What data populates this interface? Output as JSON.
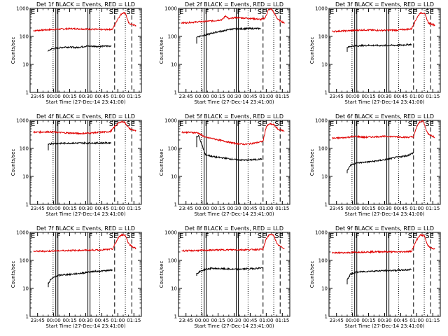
{
  "chart_data": {
    "type": "line",
    "xlabel": "Start Time (27-Dec-14 23:41:00)",
    "ylabel": "Counts/sec",
    "x_tick_labels": [
      "23:45",
      "00:00",
      "00:15",
      "00:30",
      "00:45",
      "01:00",
      "01:15"
    ],
    "y_tick_labels": [
      "1",
      "10",
      "100",
      "1000"
    ],
    "y_log": true,
    "ylim": [
      1,
      1000
    ],
    "xlim_minutes_after_start": [
      -3,
      101
    ],
    "x_ticks_minutes_after_start": [
      4,
      19,
      34,
      49,
      64,
      79,
      94
    ],
    "series_colors": {
      "events": "#000000",
      "lld": "#e00000"
    },
    "markers_minutes_after_start": {
      "dotted": [
        18.5,
        62,
        86
      ],
      "solid": [
        21,
        23,
        51,
        53
      ],
      "dashed": [
        76,
        92
      ]
    },
    "letter_labels": {
      "E": "E",
      "F": "F",
      "SE": "SE"
    },
    "panels": [
      {
        "title": "Det 1f  BLACK = Events, RED = LLD",
        "events_start": 32,
        "events": [
          [
            14,
            30
          ],
          [
            17,
            36
          ],
          [
            22,
            38
          ],
          [
            30,
            42
          ],
          [
            40,
            40
          ],
          [
            50,
            45
          ],
          [
            60,
            44
          ],
          [
            70,
            45
          ],
          [
            73,
            46
          ]
        ],
        "lld": [
          [
            0,
            160
          ],
          [
            10,
            170
          ],
          [
            22,
            180
          ],
          [
            35,
            190
          ],
          [
            45,
            185
          ],
          [
            55,
            180
          ],
          [
            65,
            175
          ],
          [
            74,
            180
          ],
          [
            79,
            430
          ],
          [
            83,
            680
          ],
          [
            86,
            700
          ],
          [
            89,
            300
          ],
          [
            93,
            260
          ],
          [
            96,
            240
          ]
        ]
      },
      {
        "title": "Det 2f  BLACK = Events, RED = LLD",
        "events_start": 55,
        "events": [
          [
            14,
            95
          ],
          [
            18,
            105
          ],
          [
            22,
            110
          ],
          [
            28,
            130
          ],
          [
            35,
            150
          ],
          [
            40,
            160
          ],
          [
            45,
            180
          ],
          [
            60,
            190
          ],
          [
            74,
            192
          ]
        ],
        "lld": [
          [
            0,
            300
          ],
          [
            10,
            320
          ],
          [
            20,
            340
          ],
          [
            30,
            360
          ],
          [
            38,
            400
          ],
          [
            41,
            550
          ],
          [
            44,
            420
          ],
          [
            50,
            470
          ],
          [
            60,
            450
          ],
          [
            70,
            420
          ],
          [
            74,
            400
          ],
          [
            78,
            460
          ],
          [
            81,
            900
          ],
          [
            84,
            950
          ],
          [
            90,
            400
          ],
          [
            96,
            300
          ]
        ]
      },
      {
        "title": "Det 3f  BLACK = Events, RED = LLD",
        "events_start": 28,
        "events": [
          [
            14,
            40
          ],
          [
            17,
            44
          ],
          [
            22,
            46
          ],
          [
            35,
            48
          ],
          [
            45,
            47
          ],
          [
            55,
            48
          ],
          [
            65,
            49
          ],
          [
            74,
            52
          ]
        ],
        "lld": [
          [
            0,
            150
          ],
          [
            15,
            160
          ],
          [
            30,
            170
          ],
          [
            45,
            165
          ],
          [
            60,
            168
          ],
          [
            74,
            185
          ],
          [
            79,
            450
          ],
          [
            82,
            680
          ],
          [
            86,
            690
          ],
          [
            90,
            300
          ],
          [
            96,
            250
          ]
        ]
      },
      {
        "title": "Det 4f  BLACK = Events, RED = LLD",
        "events_start": 85,
        "events": [
          [
            14,
            135
          ],
          [
            17,
            150
          ],
          [
            25,
            152
          ],
          [
            40,
            155
          ],
          [
            55,
            155
          ],
          [
            70,
            158
          ],
          [
            73,
            158
          ]
        ],
        "lld": [
          [
            0,
            380
          ],
          [
            15,
            390
          ],
          [
            30,
            360
          ],
          [
            45,
            340
          ],
          [
            60,
            370
          ],
          [
            72,
            400
          ],
          [
            78,
            720
          ],
          [
            82,
            900
          ],
          [
            85,
            880
          ],
          [
            90,
            500
          ],
          [
            96,
            420
          ]
        ]
      },
      {
        "title": "Det 5f  BLACK = Events, RED = LLD",
        "events_start": 110,
        "events": [
          [
            14,
            260
          ],
          [
            16,
            280
          ],
          [
            19,
            130
          ],
          [
            22,
            60
          ],
          [
            30,
            50
          ],
          [
            40,
            45
          ],
          [
            50,
            40
          ],
          [
            60,
            38
          ],
          [
            70,
            40
          ],
          [
            75,
            42
          ]
        ],
        "lld": [
          [
            0,
            380
          ],
          [
            10,
            370
          ],
          [
            15,
            360
          ],
          [
            22,
            250
          ],
          [
            30,
            220
          ],
          [
            40,
            180
          ],
          [
            50,
            150
          ],
          [
            60,
            140
          ],
          [
            70,
            160
          ],
          [
            76,
            180
          ],
          [
            79,
            600
          ],
          [
            82,
            750
          ],
          [
            86,
            700
          ],
          [
            90,
            480
          ],
          [
            96,
            420
          ]
        ]
      },
      {
        "title": "Det 6f  BLACK = Events, RED = LLD",
        "events_start": 13,
        "events": [
          [
            14,
            16
          ],
          [
            17,
            25
          ],
          [
            22,
            30
          ],
          [
            30,
            32
          ],
          [
            40,
            35
          ],
          [
            50,
            40
          ],
          [
            60,
            48
          ],
          [
            70,
            55
          ],
          [
            76,
            70
          ]
        ],
        "lld": [
          [
            0,
            230
          ],
          [
            10,
            240
          ],
          [
            22,
            270
          ],
          [
            30,
            250
          ],
          [
            40,
            260
          ],
          [
            50,
            270
          ],
          [
            60,
            260
          ],
          [
            70,
            250
          ],
          [
            76,
            260
          ],
          [
            79,
            600
          ],
          [
            82,
            900
          ],
          [
            85,
            950
          ],
          [
            89,
            350
          ],
          [
            93,
            280
          ],
          [
            96,
            250
          ]
        ]
      },
      {
        "title": "Det 7f  BLACK = Events, RED = LLD",
        "events_start": 11,
        "events": [
          [
            14,
            15
          ],
          [
            16,
            20
          ],
          [
            20,
            26
          ],
          [
            25,
            30
          ],
          [
            35,
            32
          ],
          [
            45,
            35
          ],
          [
            55,
            40
          ],
          [
            65,
            42
          ],
          [
            74,
            45
          ]
        ],
        "lld": [
          [
            0,
            210
          ],
          [
            15,
            215
          ],
          [
            30,
            225
          ],
          [
            45,
            230
          ],
          [
            60,
            235
          ],
          [
            74,
            250
          ],
          [
            79,
            600
          ],
          [
            82,
            820
          ],
          [
            86,
            800
          ],
          [
            89,
            400
          ],
          [
            93,
            300
          ],
          [
            96,
            270
          ]
        ]
      },
      {
        "title": "Det 8f  BLACK = Events, RED = LLD",
        "events_start": 28,
        "events": [
          [
            14,
            34
          ],
          [
            18,
            42
          ],
          [
            22,
            48
          ],
          [
            28,
            52
          ],
          [
            40,
            50
          ],
          [
            50,
            48
          ],
          [
            60,
            50
          ],
          [
            70,
            52
          ],
          [
            76,
            55
          ]
        ],
        "lld": [
          [
            0,
            220
          ],
          [
            15,
            225
          ],
          [
            30,
            235
          ],
          [
            45,
            240
          ],
          [
            60,
            240
          ],
          [
            76,
            250
          ],
          [
            79,
            600
          ],
          [
            82,
            850
          ],
          [
            86,
            800
          ],
          [
            89,
            380
          ],
          [
            93,
            300
          ],
          [
            96,
            270
          ]
        ]
      },
      {
        "title": "Det 9f  BLACK = Events, RED = LLD",
        "events_start": 14,
        "events": [
          [
            14,
            20
          ],
          [
            17,
            32
          ],
          [
            22,
            38
          ],
          [
            30,
            40
          ],
          [
            40,
            42
          ],
          [
            50,
            43
          ],
          [
            60,
            44
          ],
          [
            70,
            46
          ],
          [
            74,
            48
          ]
        ],
        "lld": [
          [
            0,
            185
          ],
          [
            15,
            190
          ],
          [
            30,
            200
          ],
          [
            45,
            205
          ],
          [
            60,
            200
          ],
          [
            74,
            210
          ],
          [
            79,
            550
          ],
          [
            82,
            800
          ],
          [
            86,
            780
          ],
          [
            89,
            350
          ],
          [
            93,
            270
          ],
          [
            96,
            250
          ]
        ]
      }
    ]
  }
}
